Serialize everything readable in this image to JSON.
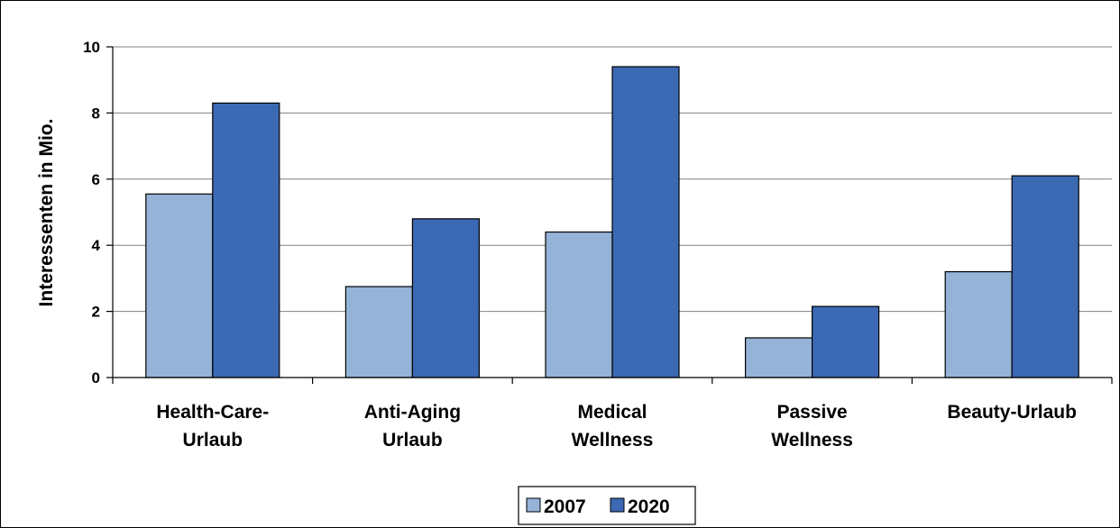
{
  "chart_data": {
    "type": "bar",
    "title": "",
    "xlabel": "",
    "ylabel": "Interessenten in Mio.",
    "ylim": [
      0,
      10
    ],
    "yticks": [
      0,
      2,
      4,
      6,
      8,
      10
    ],
    "grid": true,
    "legend_position": "bottom",
    "categories": [
      [
        "Health-Care-",
        "Urlaub"
      ],
      [
        "Anti-Aging",
        "Urlaub"
      ],
      [
        "Medical",
        "Wellness"
      ],
      [
        "Passive",
        "Wellness"
      ],
      [
        "Beauty-Urlaub"
      ]
    ],
    "series": [
      {
        "name": "2007",
        "color": "#95b3d7",
        "values": [
          5.55,
          2.75,
          4.4,
          1.2,
          3.2
        ]
      },
      {
        "name": "2020",
        "color": "#3c69b4",
        "values": [
          8.3,
          4.8,
          9.4,
          2.15,
          6.1
        ]
      }
    ]
  }
}
